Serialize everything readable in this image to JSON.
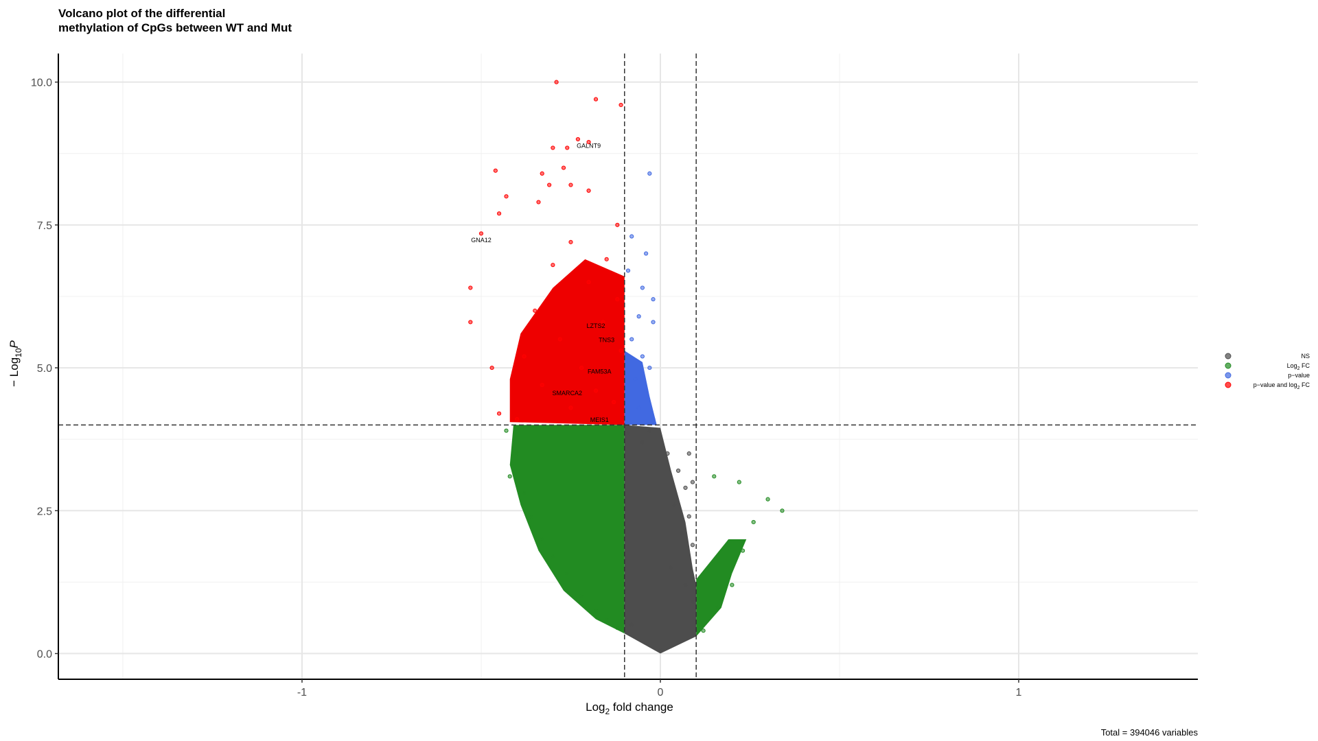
{
  "chart_data": {
    "type": "scatter",
    "title_line1": "Volcano plot of the differential",
    "title_line2": "methylation of CpGs between WT and Mut",
    "xlabel_main": "Log",
    "xlabel_sub": "2",
    "xlabel_rest": " fold change",
    "ylabel_prefix": "− Log",
    "ylabel_sub": "10",
    "ylabel_var": "P",
    "caption": "Total = 394046 variables",
    "xlim": [
      -1.68,
      1.5
    ],
    "ylim": [
      -0.45,
      10.5
    ],
    "x_ticks": [
      {
        "value": -1,
        "label": "-1"
      },
      {
        "value": 0,
        "label": "0"
      },
      {
        "value": 1,
        "label": "1"
      }
    ],
    "y_ticks": [
      {
        "value": 0,
        "label": "0.0"
      },
      {
        "value": 2.5,
        "label": "2.5"
      },
      {
        "value": 5,
        "label": "5.0"
      },
      {
        "value": 7.5,
        "label": "7.5"
      },
      {
        "value": 10,
        "label": "10.0"
      }
    ],
    "minor_x": [
      -1.5,
      -0.5,
      0.5
    ],
    "minor_y": [
      1.25,
      3.75,
      6.25,
      8.75
    ],
    "fc_cutoff": 0.1,
    "p_cutoff": 4,
    "legend": [
      {
        "label": "NS",
        "color": "#4d4d4d"
      },
      {
        "label_main": "Log",
        "label_sub": "2",
        "label_rest": " FC",
        "color": "#228b22"
      },
      {
        "label": "p−value",
        "color": "#4169e1"
      },
      {
        "label_main": "p−value and log",
        "label_sub": "2",
        "label_rest": " FC",
        "color": "#ff0000"
      }
    ],
    "gene_labels": [
      {
        "text": "GALNT9",
        "x": -0.2,
        "y": 8.85
      },
      {
        "text": "GNA12",
        "x": -0.5,
        "y": 7.2
      },
      {
        "text": "LZTS2",
        "x": -0.18,
        "y": 5.7
      },
      {
        "text": "TNS3",
        "x": -0.15,
        "y": 5.45
      },
      {
        "text": "FAM53A",
        "x": -0.17,
        "y": 4.9
      },
      {
        "text": "SMARCA2",
        "x": -0.26,
        "y": 4.52
      },
      {
        "text": "MEIS1",
        "x": -0.17,
        "y": 4.05
      }
    ],
    "series": [
      {
        "name": "NS",
        "color": "#4d4d4d",
        "points": [
          [
            -0.09,
            3.85
          ],
          [
            -0.05,
            3.7
          ],
          [
            -0.03,
            3.9
          ],
          [
            0.02,
            3.5
          ],
          [
            0.05,
            3.2
          ],
          [
            0.08,
            3.5
          ],
          [
            0.09,
            3.0
          ],
          [
            0.07,
            2.9
          ],
          [
            0.04,
            2.6
          ],
          [
            0.08,
            2.4
          ],
          [
            0.06,
            2.1
          ],
          [
            0.09,
            1.9
          ],
          [
            0.03,
            1.5
          ],
          [
            0.07,
            1.2
          ],
          [
            0.09,
            0.9
          ],
          [
            -0.08,
            0.5
          ],
          [
            0.0,
            0.05
          ],
          [
            0.05,
            0.2
          ]
        ]
      },
      {
        "name": "Log2 FC",
        "color": "#228b22",
        "points": [
          [
            -0.43,
            3.9
          ],
          [
            -0.4,
            3.5
          ],
          [
            -0.42,
            3.1
          ],
          [
            -0.38,
            2.8
          ],
          [
            -0.36,
            2.4
          ],
          [
            -0.33,
            2.0
          ],
          [
            -0.3,
            1.7
          ],
          [
            -0.26,
            1.4
          ],
          [
            -0.22,
            1.0
          ],
          [
            -0.18,
            0.75
          ],
          [
            -0.15,
            0.6
          ],
          [
            -0.12,
            0.45
          ],
          [
            0.12,
            0.4
          ],
          [
            0.16,
            0.8
          ],
          [
            0.2,
            1.2
          ],
          [
            0.23,
            1.8
          ],
          [
            0.26,
            2.3
          ],
          [
            0.3,
            2.7
          ],
          [
            0.34,
            2.5
          ],
          [
            0.22,
            3.0
          ],
          [
            0.15,
            3.1
          ]
        ]
      },
      {
        "name": "p-value",
        "color": "#4169e1",
        "points": [
          [
            -0.03,
            8.4
          ],
          [
            -0.08,
            7.3
          ],
          [
            -0.04,
            7.0
          ],
          [
            -0.09,
            6.7
          ],
          [
            -0.05,
            6.4
          ],
          [
            -0.02,
            6.2
          ],
          [
            -0.06,
            5.9
          ],
          [
            -0.02,
            5.8
          ],
          [
            -0.08,
            5.5
          ],
          [
            -0.05,
            5.2
          ],
          [
            -0.03,
            5.0
          ],
          [
            -0.07,
            4.8
          ],
          [
            -0.04,
            4.6
          ],
          [
            -0.06,
            4.3
          ],
          [
            -0.02,
            4.1
          ]
        ]
      },
      {
        "name": "p-value and log2 FC",
        "color": "#ff0000",
        "points": [
          [
            -0.29,
            10.0
          ],
          [
            -0.18,
            9.7
          ],
          [
            -0.11,
            9.6
          ],
          [
            -0.23,
            9.0
          ],
          [
            -0.2,
            8.95
          ],
          [
            -0.26,
            8.85
          ],
          [
            -0.3,
            8.85
          ],
          [
            -0.27,
            8.5
          ],
          [
            -0.46,
            8.45
          ],
          [
            -0.33,
            8.4
          ],
          [
            -0.25,
            8.2
          ],
          [
            -0.31,
            8.2
          ],
          [
            -0.2,
            8.1
          ],
          [
            -0.43,
            8.0
          ],
          [
            -0.34,
            7.9
          ],
          [
            -0.45,
            7.7
          ],
          [
            -0.12,
            7.5
          ],
          [
            -0.5,
            7.35
          ],
          [
            -0.53,
            6.4
          ],
          [
            -0.53,
            5.8
          ],
          [
            -0.47,
            5.0
          ],
          [
            -0.45,
            4.2
          ],
          [
            -0.4,
            4.1
          ],
          [
            -0.38,
            5.2
          ],
          [
            -0.35,
            6.0
          ],
          [
            -0.3,
            6.8
          ],
          [
            -0.25,
            7.2
          ],
          [
            -0.2,
            6.5
          ],
          [
            -0.15,
            6.9
          ],
          [
            -0.12,
            6.2
          ],
          [
            -0.28,
            5.5
          ],
          [
            -0.22,
            5.0
          ],
          [
            -0.18,
            4.6
          ],
          [
            -0.13,
            4.4
          ],
          [
            -0.33,
            4.7
          ],
          [
            -0.25,
            4.3
          ],
          [
            -0.16,
            5.8
          ],
          [
            -0.11,
            5.3
          ]
        ]
      }
    ]
  }
}
